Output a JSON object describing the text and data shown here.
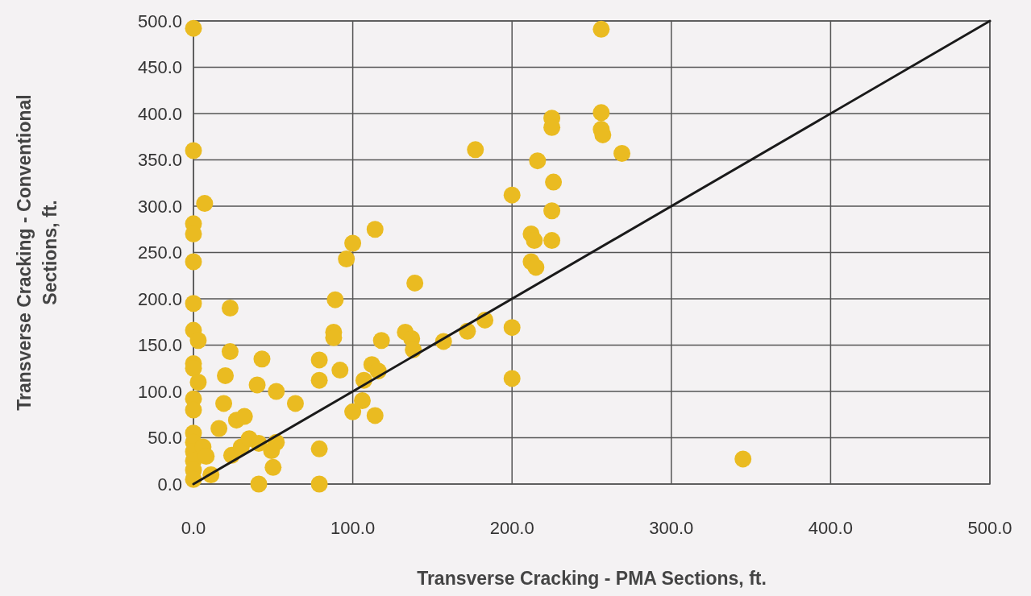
{
  "chart_data": {
    "type": "scatter",
    "xlabel": "Transverse Cracking - PMA Sections, ft.",
    "ylabel": "Transverse Cracking - Conventional\nSections, ft.",
    "xlim": [
      0,
      500
    ],
    "ylim": [
      0,
      500
    ],
    "xticks": [
      {
        "value": 0,
        "label": "0.0"
      },
      {
        "value": 100,
        "label": "100.0"
      },
      {
        "value": 200,
        "label": "200.0"
      },
      {
        "value": 300,
        "label": "300.0"
      },
      {
        "value": 400,
        "label": "400.0"
      },
      {
        "value": 500,
        "label": "500.0"
      }
    ],
    "yticks": [
      {
        "value": 0,
        "label": "0.0"
      },
      {
        "value": 50,
        "label": "50.0"
      },
      {
        "value": 100,
        "label": "100.0"
      },
      {
        "value": 150,
        "label": "150.0"
      },
      {
        "value": 200,
        "label": "200.0"
      },
      {
        "value": 250,
        "label": "250.0"
      },
      {
        "value": 300,
        "label": "300.0"
      },
      {
        "value": 350,
        "label": "350.0"
      },
      {
        "value": 400,
        "label": "400.0"
      },
      {
        "value": 450,
        "label": "450.0"
      },
      {
        "value": 500,
        "label": "500.0"
      }
    ],
    "grid": true,
    "series": [
      {
        "type": "line",
        "color": "#1a1a1a",
        "line_style": "solid",
        "x": [
          0,
          500
        ],
        "values": [
          0,
          500
        ]
      },
      {
        "color": "#eabb21",
        "marker": "circle",
        "x": [
          0,
          0,
          0,
          0,
          0,
          0,
          0,
          0,
          0,
          0,
          0,
          0,
          0,
          0,
          0,
          0,
          0,
          3,
          3,
          7,
          6,
          8,
          11,
          23,
          23,
          20,
          19,
          16,
          27,
          32,
          24,
          30,
          35,
          43,
          40,
          41,
          49,
          50,
          41,
          52,
          52,
          64,
          79,
          79,
          79,
          79,
          88,
          89,
          88,
          92,
          96,
          100,
          100,
          106,
          107,
          112,
          114,
          114,
          116,
          118,
          133,
          139,
          137,
          138,
          157,
          172,
          183,
          177,
          200,
          200,
          200,
          216,
          212,
          214,
          212,
          215,
          226,
          225,
          225,
          225,
          225,
          256,
          256,
          256,
          257,
          269,
          345
        ],
        "values": [
          492,
          360,
          281,
          270,
          240,
          195,
          166,
          130,
          125,
          92,
          80,
          55,
          45,
          35,
          25,
          15,
          5,
          155,
          110,
          303,
          40,
          30,
          10,
          190,
          143,
          117,
          87,
          60,
          69,
          73,
          31,
          40,
          49,
          135,
          107,
          44,
          36,
          18,
          0,
          45,
          100,
          87,
          38,
          0,
          134,
          112,
          164,
          199,
          158,
          123,
          243,
          260,
          78,
          90,
          112,
          129,
          275,
          74,
          122,
          155,
          164,
          217,
          157,
          145,
          154,
          165,
          177,
          361,
          312,
          169,
          114,
          349,
          270,
          263,
          240,
          234,
          326,
          295,
          263,
          395,
          385,
          491,
          401,
          383,
          377,
          357,
          27
        ]
      }
    ]
  }
}
